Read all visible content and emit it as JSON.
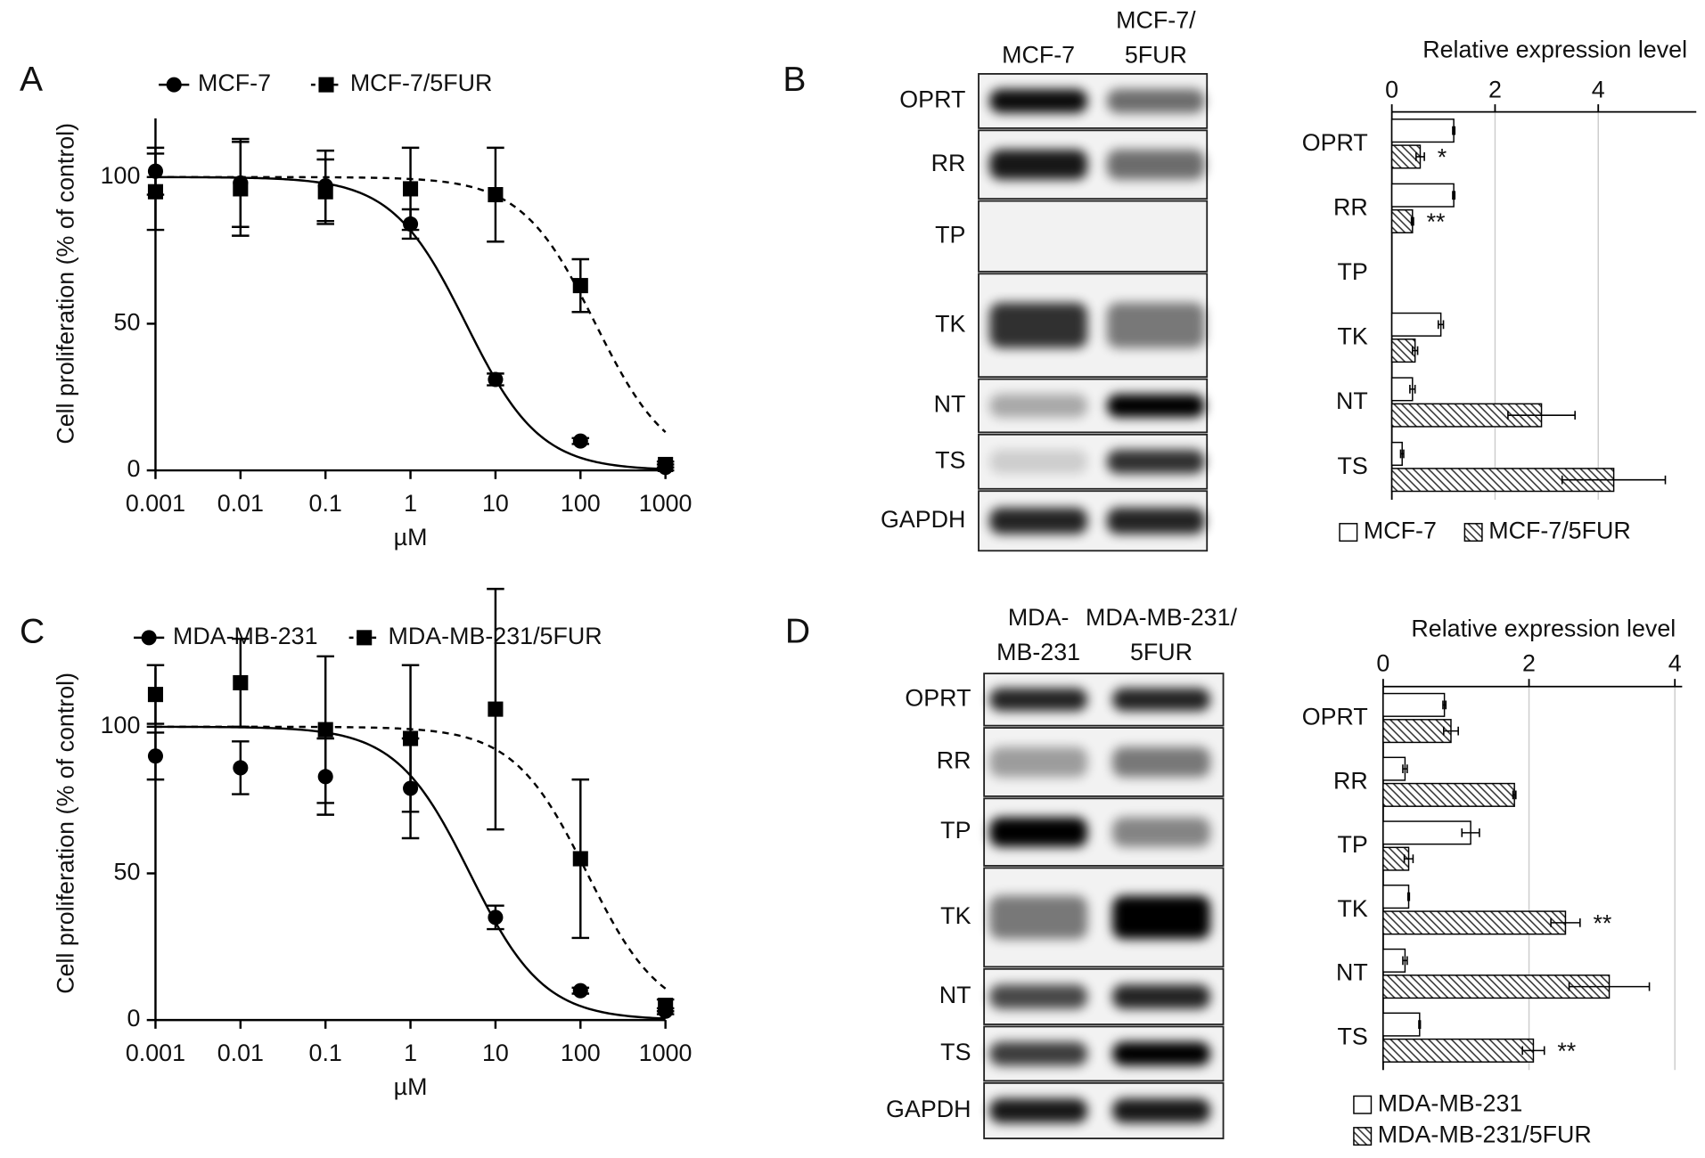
{
  "chart_data": [
    {
      "type": "line",
      "panel_label": "A",
      "x_scale": "log",
      "x": [
        0.001,
        0.01,
        0.1,
        1,
        10,
        100,
        1000
      ],
      "xlim": [
        0.001,
        1000
      ],
      "xticks": [
        0.001,
        0.01,
        0.1,
        1,
        10,
        100,
        1000
      ],
      "ylim": [
        0,
        120
      ],
      "yticks": [
        0,
        50,
        100
      ],
      "xlabel": "µM",
      "ylabel": "Cell proliferation (% of control)",
      "series": [
        {
          "name": "MCF-7",
          "color": "#000000",
          "marker": "circle",
          "line_style": "solid",
          "values": [
            102,
            98,
            97,
            84,
            31,
            10,
            1
          ],
          "errors": [
            8,
            15,
            12,
            5,
            2,
            1,
            1
          ],
          "fit": {
            "top": 100,
            "bottom": 0,
            "ic50": 4.5,
            "hill": 1
          }
        },
        {
          "name": "MCF-7/5FUR",
          "color": "#000000",
          "marker": "square",
          "line_style": "dashed",
          "values": [
            95,
            96,
            95,
            96,
            94,
            63,
            2
          ],
          "errors": [
            13,
            16,
            11,
            14,
            16,
            9,
            1
          ],
          "fit": {
            "top": 100,
            "bottom": 0,
            "ic50": 150,
            "hill": 1
          }
        }
      ]
    },
    {
      "type": "hbar",
      "title": "Relative expression level",
      "categories": [
        "OPRT",
        "RR",
        "TP",
        "TK",
        "NT",
        "TS"
      ],
      "xlim": [
        0,
        5.9
      ],
      "xticks": [
        0,
        2,
        4
      ],
      "grid": true,
      "series": [
        {
          "name": "MCF-7",
          "fill": "white",
          "values": [
            1.2,
            1.2,
            0,
            0.95,
            0.4,
            0.2
          ],
          "errors": [
            0.02,
            0.02,
            0,
            0.05,
            0.05,
            0.03
          ]
        },
        {
          "name": "MCF-7/5FUR",
          "fill": "hatched",
          "values": [
            0.55,
            0.4,
            0,
            0.45,
            2.9,
            4.3
          ],
          "errors": [
            0.08,
            0.02,
            0,
            0.05,
            0.65,
            1.0
          ]
        }
      ],
      "significance": [
        "*",
        "**",
        null,
        null,
        null,
        null
      ]
    },
    {
      "type": "line",
      "panel_label": "C",
      "x_scale": "log",
      "x": [
        0.001,
        0.01,
        0.1,
        1,
        10,
        100,
        1000
      ],
      "xlim": [
        0.001,
        1000
      ],
      "xticks": [
        0.001,
        0.01,
        0.1,
        1,
        10,
        100,
        1000
      ],
      "ylim": [
        0,
        120
      ],
      "yticks": [
        0,
        50,
        100
      ],
      "xlabel": "µM",
      "ylabel": "Cell proliferation (% of control)",
      "series": [
        {
          "name": "MDA-MB-231",
          "color": "#000000",
          "marker": "circle",
          "line_style": "solid",
          "values": [
            90,
            86,
            83,
            79,
            35,
            10,
            3
          ],
          "errors": [
            8,
            9,
            13,
            17,
            4,
            1,
            1
          ],
          "fit": {
            "top": 100,
            "bottom": 0,
            "ic50": 5,
            "hill": 1
          }
        },
        {
          "name": "MDA-MB-231/5FUR",
          "color": "#000000",
          "marker": "square",
          "line_style": "dashed",
          "values": [
            111,
            115,
            99,
            96,
            106,
            55,
            5
          ],
          "errors": [
            10,
            15,
            25,
            25,
            41,
            27,
            2
          ],
          "fit": {
            "top": 100,
            "bottom": 0,
            "ic50": 120,
            "hill": 1
          }
        }
      ]
    },
    {
      "type": "hbar",
      "title": "Relative expression level",
      "categories": [
        "OPRT",
        "RR",
        "TP",
        "TK",
        "NT",
        "TS"
      ],
      "xlim": [
        0,
        4.1
      ],
      "xticks": [
        0,
        2,
        4
      ],
      "grid": true,
      "series": [
        {
          "name": "MDA-MB-231",
          "fill": "white",
          "values": [
            0.84,
            0.3,
            1.2,
            0.35,
            0.3,
            0.5
          ],
          "errors": [
            0.02,
            0.03,
            0.12,
            0.01,
            0.03,
            0.01
          ]
        },
        {
          "name": "MDA-MB-231/5FUR",
          "fill": "hatched",
          "values": [
            0.93,
            1.8,
            0.35,
            2.5,
            3.1,
            2.06
          ],
          "errors": [
            0.1,
            0.02,
            0.06,
            0.2,
            0.55,
            0.15
          ]
        }
      ],
      "significance": [
        null,
        null,
        null,
        "**",
        null,
        "**"
      ]
    }
  ],
  "blots": [
    {
      "panel_label": "B",
      "lanes": [
        [
          "MCF-7"
        ],
        [
          "MCF-7/",
          "5FUR"
        ]
      ],
      "rows": [
        "OPRT",
        "RR",
        "TP",
        "TK",
        "NT",
        "TS",
        "GAPDH"
      ]
    },
    {
      "panel_label": "D",
      "lanes": [
        [
          "MDA-",
          "MB-231"
        ],
        [
          "MDA-MB-231/",
          "5FUR"
        ]
      ],
      "rows": [
        "OPRT",
        "RR",
        "TP",
        "TK",
        "NT",
        "TS",
        "GAPDH"
      ]
    }
  ]
}
